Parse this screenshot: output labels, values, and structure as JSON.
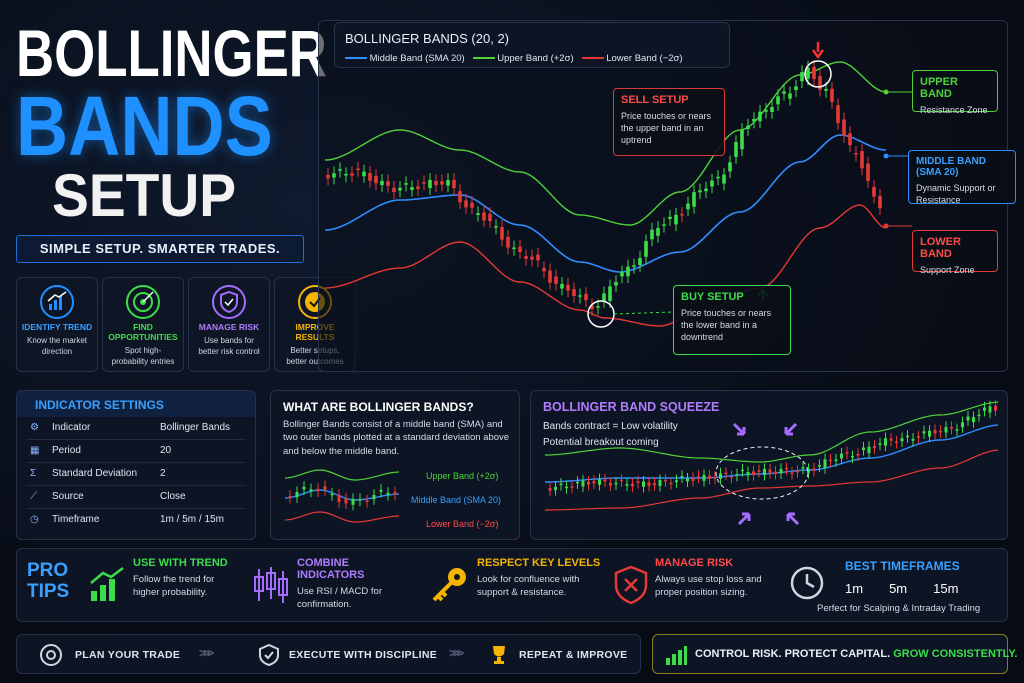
{
  "title": {
    "line1": "BOLLINGER",
    "line2": "BANDS",
    "line3": "SETUP"
  },
  "tagline": "SIMPLE SETUP. SMARTER TRADES.",
  "features": [
    {
      "title": "IDENTIFY TREND",
      "text": "Know the market direction"
    },
    {
      "title": "FIND OPPORTUNITIES",
      "text": "Spot high-probability entries"
    },
    {
      "title": "MANAGE RISK",
      "text": "Use bands for better risk control"
    },
    {
      "title": "IMPROVE RESULTS",
      "text": "Better setups, better outcomes"
    }
  ],
  "chart": {
    "title": "BOLLINGER BANDS (20, 2)",
    "legend": [
      "Middle Band (SMA 20)",
      "Upper Band (+2σ)",
      "Lower Band (−2σ)"
    ],
    "callouts": [
      {
        "title": "SELL SETUP",
        "text": "Price touches or nears the upper band in an uptrend"
      },
      {
        "title": "BUY SETUP",
        "text": "Price touches or nears the lower band in a downtrend"
      },
      {
        "title": "UPPER BAND",
        "text": "Resistance Zone"
      },
      {
        "title": "MIDDLE BAND (SMA 20)",
        "text": "Dynamic Support or Resistance"
      },
      {
        "title": "LOWER BAND",
        "text": "Support Zone"
      }
    ]
  },
  "settings": {
    "title": "INDICATOR SETTINGS",
    "rows": [
      [
        "Indicator",
        "Bollinger Bands"
      ],
      [
        "Period",
        "20"
      ],
      [
        "Standard Deviation",
        "2"
      ],
      [
        "Source",
        "Close"
      ],
      [
        "Timeframe",
        "1m / 5m / 15m"
      ]
    ]
  },
  "what": {
    "title": "WHAT ARE BOLLINGER BANDS?",
    "text": "Bollinger Bands consist of a middle band (SMA) and two outer bands plotted at a standard deviation above and below the middle band.",
    "labels": [
      "Upper Band (+2σ)",
      "Middle Band (SMA 20)",
      "Lower Band (−2σ)"
    ]
  },
  "squeeze": {
    "title": "BOLLINGER BAND SQUEEZE",
    "lines": [
      "Bands contract = Low volatility",
      "Potential breakout coming"
    ]
  },
  "pro_tips": {
    "label": [
      "PRO",
      "TIPS"
    ],
    "tips": [
      {
        "title": "USE WITH TREND",
        "text": "Follow the trend for higher probability."
      },
      {
        "title": "COMBINE INDICATORS",
        "text": "Use RSI / MACD for confirmation."
      },
      {
        "title": "RESPECT KEY LEVELS",
        "text": "Look for confluence with support & resistance."
      },
      {
        "title": "MANAGE RISK",
        "text": "Always use stop loss and proper position sizing."
      }
    ],
    "timeframes": {
      "title": "BEST TIMEFRAMES",
      "values": [
        "1m",
        "5m",
        "15m"
      ],
      "text": "Perfect for Scalping & Intraday Trading"
    }
  },
  "footer": {
    "steps": [
      "PLAN YOUR TRADE",
      "EXECUTE WITH DISCIPLINE",
      "REPEAT & IMPROVE"
    ],
    "motto": "CONTROL RISK. PROTECT CAPITAL.",
    "motto_highlight": "GROW CONSISTENTLY."
  }
}
